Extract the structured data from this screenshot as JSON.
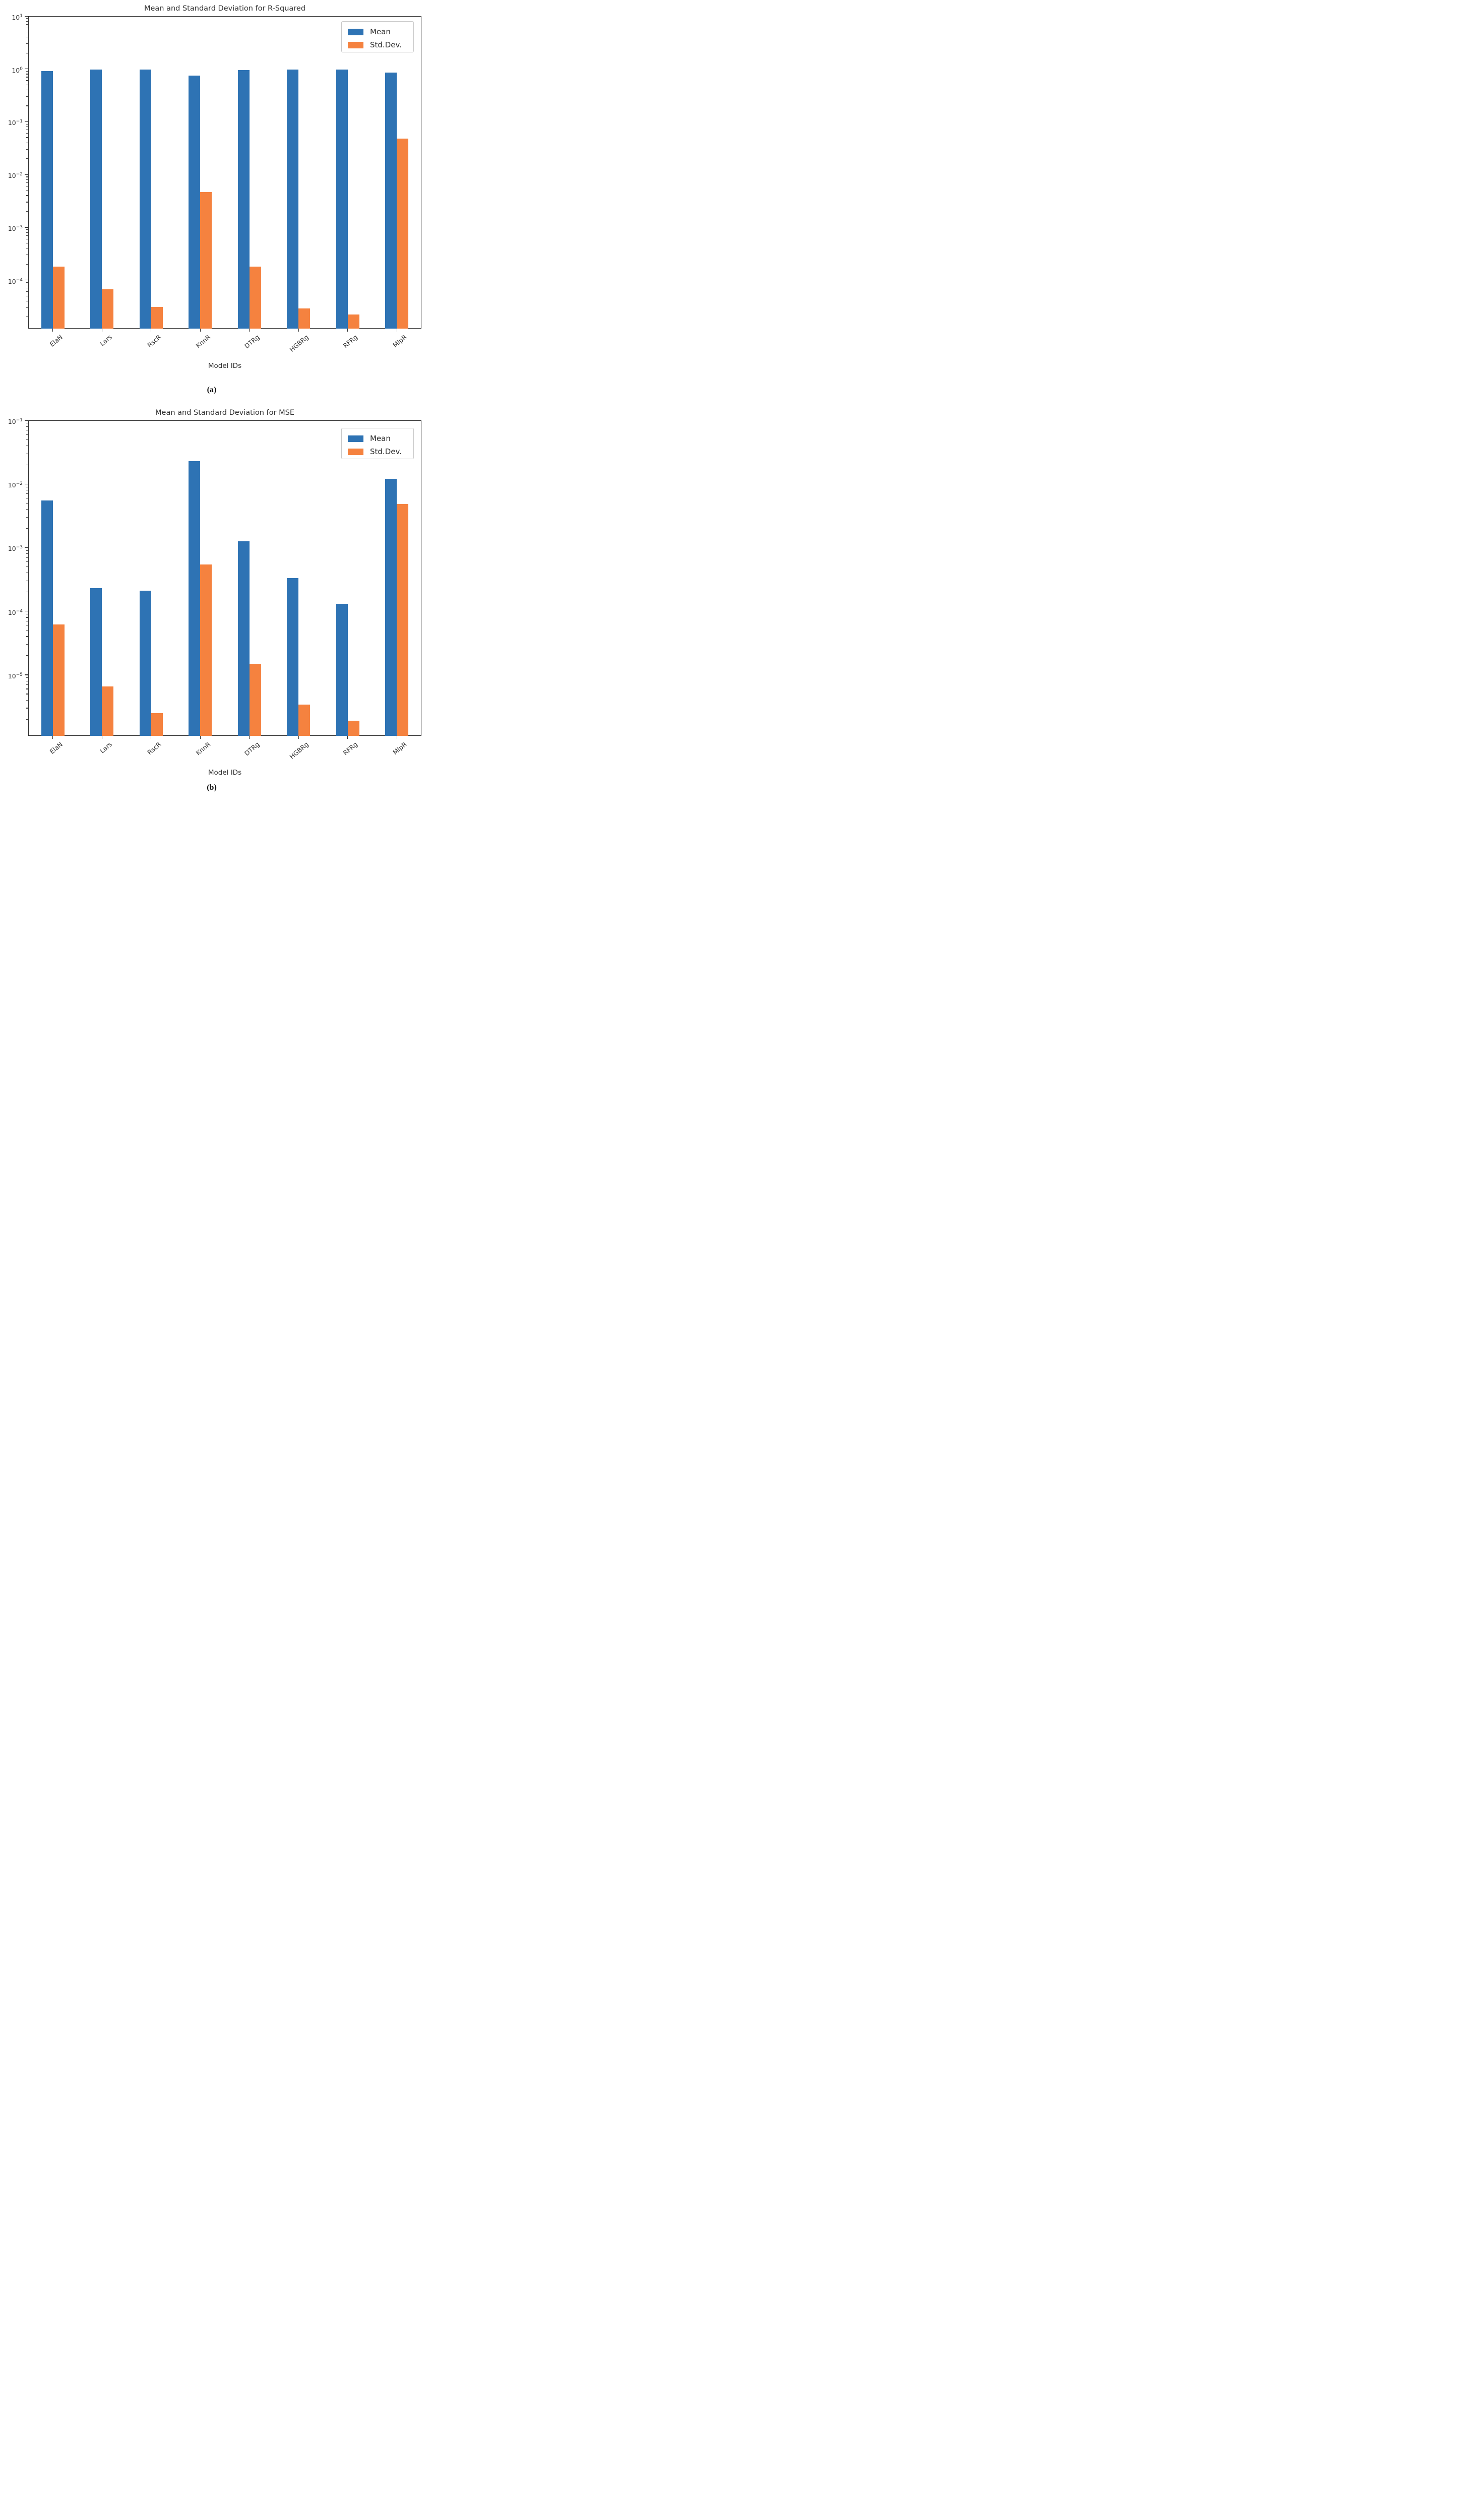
{
  "page": {
    "background": "#ffffff"
  },
  "colors": {
    "mean_bar": "#2e73b4",
    "std_bar": "#f5823f",
    "spine": "#2f2f2f",
    "text": "#333333",
    "legend_border": "#c8c8c8"
  },
  "categories": [
    "ElaN",
    "Lars",
    "RscR",
    "KnnR",
    "DTRg",
    "HGBRg",
    "RFRg",
    "MlpR"
  ],
  "legend": {
    "mean_label": "Mean",
    "std_label": "Std.Dev."
  },
  "captions": {
    "a": "(a)",
    "b": "(b)"
  },
  "chart_data": [
    {
      "type": "bar",
      "title": "Mean and Standard Deviation for R-Squared",
      "xlabel": "Model IDs",
      "ylabel": "",
      "log_scale": true,
      "ylim": [
        1.2e-05,
        10
      ],
      "y_tick_exponents": [
        1,
        0,
        -1,
        -2,
        -3,
        -4
      ],
      "grid": false,
      "legend_position": "upper right",
      "legend_entries": [
        "Mean",
        "Std.Dev."
      ],
      "categories": [
        "ElaN",
        "Lars",
        "RscR",
        "KnnR",
        "DTRg",
        "HGBRg",
        "RFRg",
        "MlpR"
      ],
      "series": [
        {
          "name": "Mean",
          "values": [
            0.92,
            0.97,
            0.97,
            0.75,
            0.96,
            0.97,
            0.97,
            0.85
          ]
        },
        {
          "name": "Std.Dev.",
          "values": [
            0.00018,
            6.6e-05,
            3.1e-05,
            0.0046,
            0.00018,
            2.9e-05,
            2.2e-05,
            0.048
          ]
        }
      ]
    },
    {
      "type": "bar",
      "title": "Mean and Standard Deviation for MSE",
      "xlabel": "Model IDs",
      "ylabel": "",
      "log_scale": true,
      "ylim": [
        1.1e-06,
        0.1
      ],
      "y_tick_exponents": [
        -1,
        -2,
        -3,
        -4,
        -5
      ],
      "grid": false,
      "legend_position": "upper right",
      "legend_entries": [
        "Mean",
        "Std.Dev."
      ],
      "categories": [
        "ElaN",
        "Lars",
        "RscR",
        "KnnR",
        "DTRg",
        "HGBRg",
        "RFRg",
        "MlpR"
      ],
      "series": [
        {
          "name": "Mean",
          "values": [
            0.0055,
            0.00023,
            0.00021,
            0.023,
            0.00125,
            0.00033,
            0.00013,
            0.012
          ]
        },
        {
          "name": "Std.Dev.",
          "values": [
            6.2e-05,
            6.6e-06,
            2.5e-06,
            0.00054,
            1.5e-05,
            3.4e-06,
            1.9e-06,
            0.0048
          ]
        }
      ]
    }
  ]
}
